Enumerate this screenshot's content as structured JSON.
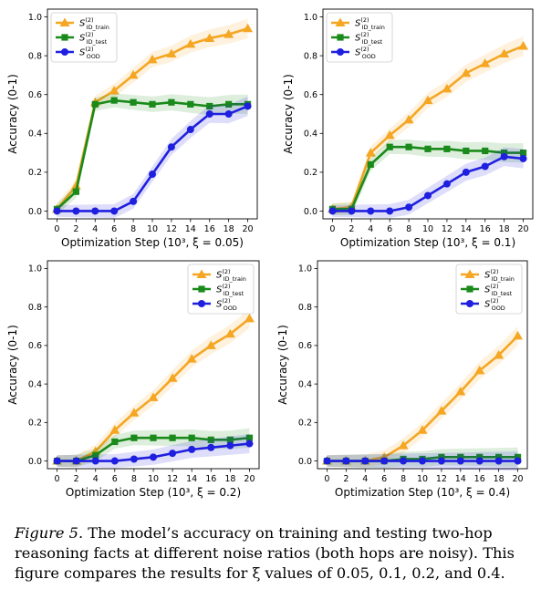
{
  "chart_data": [
    {
      "type": "line",
      "xlabel": "Optimization Step (10³, ξ = 0.05)",
      "ylabel": "Accuracy (0-1)",
      "x": [
        0,
        2,
        4,
        6,
        8,
        10,
        12,
        14,
        16,
        18,
        20
      ],
      "xticks": [
        "0",
        "2",
        "4",
        "6",
        "8",
        "10",
        "12",
        "14",
        "16",
        "18",
        "20"
      ],
      "yticks": [
        "0.0",
        "0.2",
        "0.4",
        "0.6",
        "0.8",
        "1.0"
      ],
      "ylim": [
        -0.04,
        1.04
      ],
      "legend_position": "top-left",
      "series": [
        {
          "name": "S(2) ID_train",
          "label_main": "S",
          "label_sup": "(2)",
          "label_sub": "ID_train",
          "color": "#f5a623",
          "marker": "triangle",
          "values": [
            0.01,
            0.13,
            0.56,
            0.62,
            0.7,
            0.78,
            0.81,
            0.86,
            0.89,
            0.91,
            0.94
          ]
        },
        {
          "name": "S(2) ID_test",
          "label_main": "S",
          "label_sup": "(2)",
          "label_sub": "ID_test",
          "color": "#1a8a1a",
          "marker": "square",
          "values": [
            0.01,
            0.1,
            0.55,
            0.57,
            0.56,
            0.55,
            0.56,
            0.55,
            0.54,
            0.55,
            0.55
          ]
        },
        {
          "name": "S(2) OOD",
          "label_main": "S",
          "label_sup": "(2)",
          "label_sub": "OOD",
          "color": "#1f1fe0",
          "marker": "circle",
          "values": [
            0.0,
            0.0,
            0.0,
            0.0,
            0.05,
            0.19,
            0.33,
            0.42,
            0.5,
            0.5,
            0.54
          ]
        }
      ]
    },
    {
      "type": "line",
      "xlabel": "Optimization Step (10³, ξ = 0.1)",
      "ylabel": "Accuracy (0-1)",
      "x": [
        0,
        2,
        4,
        6,
        8,
        10,
        12,
        14,
        16,
        18,
        20
      ],
      "xticks": [
        "0",
        "2",
        "4",
        "6",
        "8",
        "10",
        "12",
        "14",
        "16",
        "18",
        "20"
      ],
      "yticks": [
        "0.0",
        "0.2",
        "0.4",
        "0.6",
        "0.8",
        "1.0"
      ],
      "ylim": [
        -0.04,
        1.04
      ],
      "legend_position": "top-left",
      "series": [
        {
          "name": "S(2) ID_train",
          "label_main": "S",
          "label_sup": "(2)",
          "label_sub": "ID_train",
          "color": "#f5a623",
          "marker": "triangle",
          "values": [
            0.01,
            0.02,
            0.3,
            0.39,
            0.47,
            0.57,
            0.63,
            0.71,
            0.76,
            0.81,
            0.85
          ]
        },
        {
          "name": "S(2) ID_test",
          "label_main": "S",
          "label_sup": "(2)",
          "label_sub": "ID_test",
          "color": "#1a8a1a",
          "marker": "square",
          "values": [
            0.01,
            0.01,
            0.24,
            0.33,
            0.33,
            0.32,
            0.32,
            0.31,
            0.31,
            0.3,
            0.3
          ]
        },
        {
          "name": "S(2) OOD",
          "label_main": "S",
          "label_sup": "(2)",
          "label_sub": "OOD",
          "color": "#1f1fe0",
          "marker": "circle",
          "values": [
            0.0,
            0.0,
            0.0,
            0.0,
            0.02,
            0.08,
            0.14,
            0.2,
            0.23,
            0.28,
            0.27
          ]
        }
      ]
    },
    {
      "type": "line",
      "xlabel": "Optimization Step (10³, ξ = 0.2)",
      "ylabel": "Accuracy (0-1)",
      "x": [
        0,
        2,
        4,
        6,
        8,
        10,
        12,
        14,
        16,
        18,
        20
      ],
      "xticks": [
        "0",
        "2",
        "4",
        "6",
        "8",
        "10",
        "12",
        "14",
        "16",
        "18",
        "20"
      ],
      "yticks": [
        "0.0",
        "0.2",
        "0.4",
        "0.6",
        "0.8",
        "1.0"
      ],
      "ylim": [
        -0.04,
        1.04
      ],
      "legend_position": "top-right",
      "series": [
        {
          "name": "S(2) ID_train",
          "label_main": "S",
          "label_sup": "(2)",
          "label_sub": "ID_train",
          "color": "#f5a623",
          "marker": "triangle",
          "values": [
            0.0,
            0.0,
            0.05,
            0.16,
            0.25,
            0.33,
            0.43,
            0.53,
            0.6,
            0.66,
            0.74
          ]
        },
        {
          "name": "S(2) ID_test",
          "label_main": "S",
          "label_sup": "(2)",
          "label_sub": "ID_test",
          "color": "#1a8a1a",
          "marker": "square",
          "values": [
            0.0,
            0.0,
            0.03,
            0.1,
            0.12,
            0.12,
            0.12,
            0.12,
            0.11,
            0.11,
            0.12
          ]
        },
        {
          "name": "S(2) OOD",
          "label_main": "S",
          "label_sup": "(2)",
          "label_sub": "OOD",
          "color": "#1f1fe0",
          "marker": "circle",
          "values": [
            0.0,
            0.0,
            0.0,
            0.0,
            0.01,
            0.02,
            0.04,
            0.06,
            0.07,
            0.08,
            0.09
          ]
        }
      ]
    },
    {
      "type": "line",
      "xlabel": "Optimization Step (10³, ξ = 0.4)",
      "ylabel": "Accuracy (0-1)",
      "x": [
        0,
        2,
        4,
        6,
        8,
        10,
        12,
        14,
        16,
        18,
        20
      ],
      "xticks": [
        "0",
        "2",
        "4",
        "6",
        "8",
        "10",
        "12",
        "14",
        "16",
        "18",
        "20"
      ],
      "yticks": [
        "0.0",
        "0.2",
        "0.4",
        "0.6",
        "0.8",
        "1.0"
      ],
      "ylim": [
        -0.04,
        1.04
      ],
      "legend_position": "top-right",
      "series": [
        {
          "name": "S(2) ID_train",
          "label_main": "S",
          "label_sup": "(2)",
          "label_sub": "ID_train",
          "color": "#f5a623",
          "marker": "triangle",
          "values": [
            0.0,
            0.0,
            0.0,
            0.02,
            0.08,
            0.16,
            0.26,
            0.36,
            0.47,
            0.55,
            0.65
          ]
        },
        {
          "name": "S(2) ID_test",
          "label_main": "S",
          "label_sup": "(2)",
          "label_sub": "ID_test",
          "color": "#1a8a1a",
          "marker": "square",
          "values": [
            0.0,
            0.0,
            0.0,
            0.0,
            0.01,
            0.01,
            0.02,
            0.02,
            0.02,
            0.02,
            0.02
          ]
        },
        {
          "name": "S(2) OOD",
          "label_main": "S",
          "label_sup": "(2)",
          "label_sub": "OOD",
          "color": "#1f1fe0",
          "marker": "circle",
          "values": [
            0.0,
            0.0,
            0.0,
            0.0,
            0.0,
            0.0,
            0.0,
            0.0,
            0.0,
            0.0,
            0.0
          ]
        }
      ]
    }
  ],
  "caption": {
    "label": "Figure 5.",
    "text": "The model’s accuracy on training and testing two-hop reasoning facts at different noise ratios (both hops are noisy). This figure compares the results for ξ values of 0.05, 0.1, 0.2, and 0.4."
  }
}
